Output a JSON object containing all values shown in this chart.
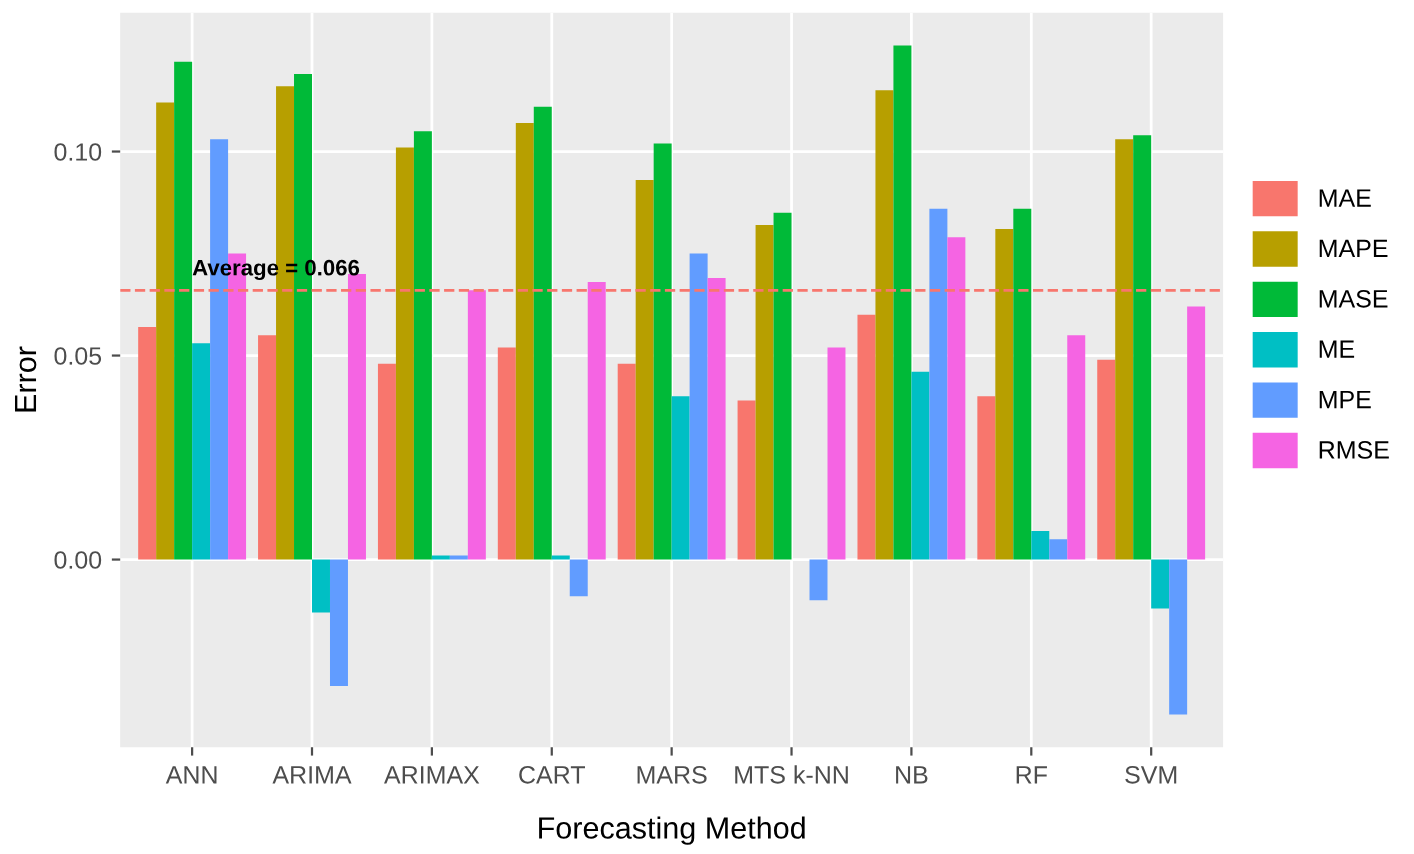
{
  "chart_data": {
    "type": "bar",
    "xlabel": "Forecasting Method",
    "ylabel": "Error",
    "legend": "right",
    "grid": true,
    "categories": [
      "ANN",
      "ARIMA",
      "ARIMAX",
      "CART",
      "MARS",
      "MTS k-NN",
      "NB",
      "RF",
      "SVM"
    ],
    "series": [
      {
        "name": "MAE",
        "color": "#f8766d",
        "values": [
          0.057,
          0.055,
          0.048,
          0.052,
          0.048,
          0.039,
          0.06,
          0.04,
          0.049
        ]
      },
      {
        "name": "MAPE",
        "color": "#b79f00",
        "values": [
          0.112,
          0.116,
          0.101,
          0.107,
          0.093,
          0.082,
          0.115,
          0.081,
          0.103
        ]
      },
      {
        "name": "MASE",
        "color": "#00ba38",
        "values": [
          0.122,
          0.119,
          0.105,
          0.111,
          0.102,
          0.085,
          0.126,
          0.086,
          0.104
        ]
      },
      {
        "name": "ME",
        "color": "#00bfc4",
        "values": [
          0.053,
          -0.013,
          0.001,
          0.001,
          0.04,
          0.0,
          0.046,
          0.007,
          -0.012
        ]
      },
      {
        "name": "MPE",
        "color": "#619cff",
        "values": [
          0.103,
          -0.031,
          0.001,
          -0.009,
          0.075,
          -0.01,
          0.086,
          0.005,
          -0.038
        ]
      },
      {
        "name": "RMSE",
        "color": "#f564e3",
        "values": [
          0.075,
          0.07,
          0.066,
          0.068,
          0.069,
          0.052,
          0.079,
          0.055,
          0.062
        ]
      }
    ],
    "ylim": [
      -0.046,
      0.134
    ],
    "yticks": [
      {
        "value": 0,
        "label": "0.00"
      },
      {
        "value": 0.05,
        "label": "0.05"
      },
      {
        "value": 0.1,
        "label": "0.10"
      }
    ],
    "ref_lines": [
      {
        "axis": "y",
        "value": 0.066,
        "label": "Average = 0.066",
        "color": "#f8766d",
        "line_style": "dashed"
      }
    ]
  }
}
